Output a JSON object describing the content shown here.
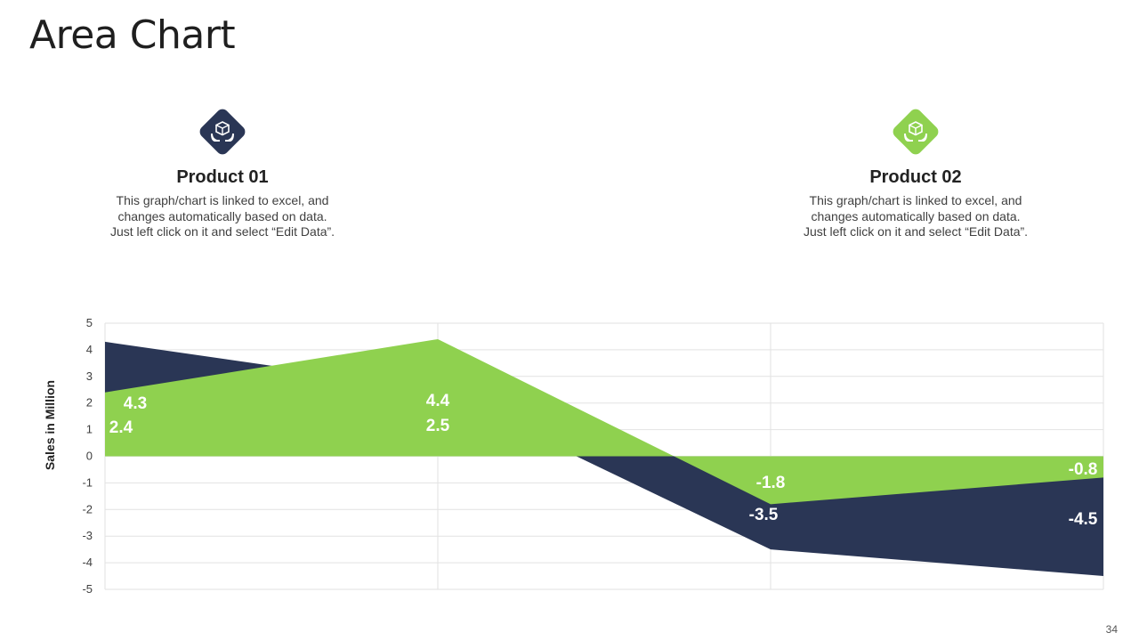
{
  "title": "Area Chart",
  "page_number": "34",
  "products": [
    {
      "name": "Product 01",
      "description": [
        "This graph/chart is linked to excel, and",
        "changes automatically based on data.",
        "Just left click on it and select “Edit Data”."
      ],
      "color": "#2a3655",
      "icon": "box-in-hands-icon"
    },
    {
      "name": "Product 02",
      "description": [
        "This graph/chart is linked to excel, and",
        "changes automatically based on data.",
        "Just left click on it and select “Edit Data”."
      ],
      "color": "#8fd14f",
      "icon": "box-in-hands-icon"
    }
  ],
  "chart_data": {
    "type": "area",
    "categories": [
      "",
      "",
      "",
      ""
    ],
    "series": [
      {
        "name": "Product 01",
        "values": [
          4.3,
          2.5,
          -3.5,
          -4.5
        ],
        "color": "#2a3655",
        "labels": [
          "4.3",
          "2.5",
          "-3.5",
          "-4.5"
        ]
      },
      {
        "name": "Product 02",
        "values": [
          2.4,
          4.4,
          -1.8,
          -0.8
        ],
        "color": "#8fd14f",
        "labels": [
          "2.4",
          "4.4",
          "-1.8",
          "-0.8"
        ]
      }
    ],
    "ylabel": "Sales in Million",
    "ylim": [
      -5,
      5
    ],
    "yticks": [
      "5",
      "4",
      "3",
      "2",
      "1",
      "0",
      "-1",
      "-2",
      "-3",
      "-4",
      "-5"
    ],
    "grid": true,
    "legend": "none"
  }
}
